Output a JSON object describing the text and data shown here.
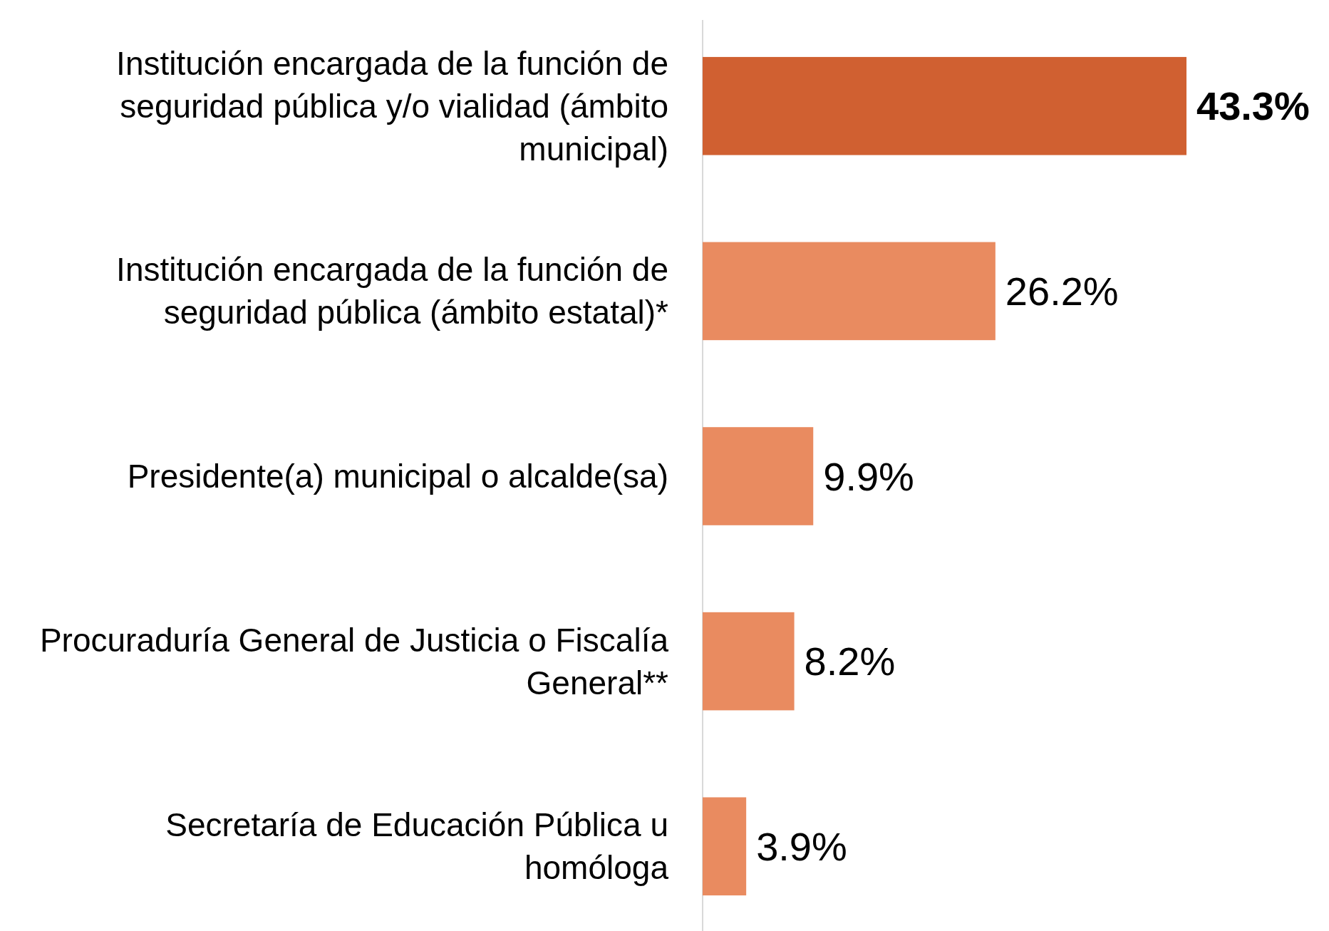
{
  "chart_data": {
    "type": "bar",
    "orientation": "horizontal",
    "categories": [
      "Institución encargada de la función de seguridad pública y/o vialidad (ámbito municipal)",
      "Institución encargada de la función de seguridad pública (ámbito estatal)*",
      "Presidente(a) municipal o alcalde(sa)",
      "Procuraduría General de Justicia o Fiscalía General**",
      "Secretaría de Educación Pública u homóloga"
    ],
    "values": [
      43.3,
      26.2,
      9.9,
      8.2,
      3.9
    ],
    "value_labels": [
      "43.3%",
      "26.2%",
      "9.9%",
      "8.2%",
      "3.9%"
    ],
    "colors": [
      "#d06031",
      "#e98b60",
      "#e98b60",
      "#e98b60",
      "#e98b60"
    ]
  }
}
